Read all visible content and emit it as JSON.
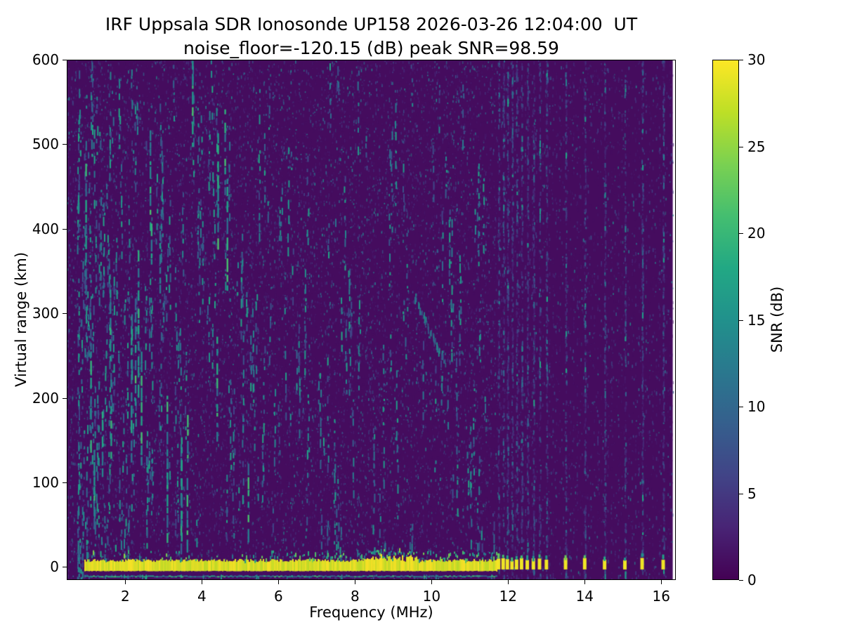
{
  "chart_data": {
    "type": "heatmap",
    "title": "IRF Uppsala SDR Ionosonde UP158 2026-03-26 12:04:00  UT",
    "subtitle": "noise_floor=-120.15 (dB) peak SNR=98.59",
    "station": "UP158",
    "timestamp_ut": "2026-03-26 12:04:00",
    "noise_floor_db": -120.15,
    "peak_snr_db": 98.59,
    "xlabel": "Frequency (MHz)",
    "ylabel": "Virtual range (km)",
    "xlim": [
      0.47,
      16.38
    ],
    "ylim": [
      -15.5,
      600
    ],
    "xticks": [
      2,
      4,
      6,
      8,
      10,
      12,
      14,
      16
    ],
    "yticks": [
      0,
      100,
      200,
      300,
      400,
      500,
      600
    ],
    "grid": false,
    "colorbar": {
      "label": "SNR (dB)",
      "min": 0,
      "max": 30,
      "ticks": [
        0,
        5,
        10,
        15,
        20,
        25,
        30
      ],
      "colormap": "viridis",
      "position": "right"
    },
    "colormap_stops": [
      [
        0.0,
        68,
        1,
        84
      ],
      [
        0.1,
        72,
        36,
        117
      ],
      [
        0.2,
        65,
        68,
        135
      ],
      [
        0.3,
        53,
        95,
        141
      ],
      [
        0.4,
        42,
        120,
        142
      ],
      [
        0.5,
        33,
        145,
        140
      ],
      [
        0.6,
        34,
        168,
        132
      ],
      [
        0.7,
        68,
        190,
        112
      ],
      [
        0.8,
        122,
        209,
        81
      ],
      [
        0.9,
        189,
        223,
        38
      ],
      [
        1.0,
        253,
        231,
        37
      ]
    ],
    "features": {
      "data_x_max_mhz": 16.3,
      "background_snr_db": 1,
      "ground_return": {
        "x_start_mhz": 0.93,
        "x_end_mhz": 11.7,
        "y_top_km": 8,
        "y_bottom_km": -5,
        "snr_db": 30
      },
      "sub_band_echo_line": {
        "x_start_mhz": 0.93,
        "x_end_mhz": 11.7,
        "y_km": -10,
        "snr_db": 12
      },
      "pulse_frequencies_mhz": [
        11.75,
        11.87,
        11.98,
        12.1,
        12.22,
        12.35,
        12.5,
        12.66,
        12.82,
        13.0,
        13.5,
        14.0,
        14.52,
        15.05,
        15.5,
        16.05
      ],
      "echo_trace": {
        "f_mhz": [
          9.55,
          10.35
        ],
        "range_km": [
          322,
          243
        ],
        "snr_db": 14
      },
      "noise": {
        "seed": 158,
        "fine_count": 26000,
        "streak_count": 330,
        "long_streak_count": 26,
        "left_bias_exponent": 1.9,
        "high_freq_density": 0.4
      }
    }
  }
}
